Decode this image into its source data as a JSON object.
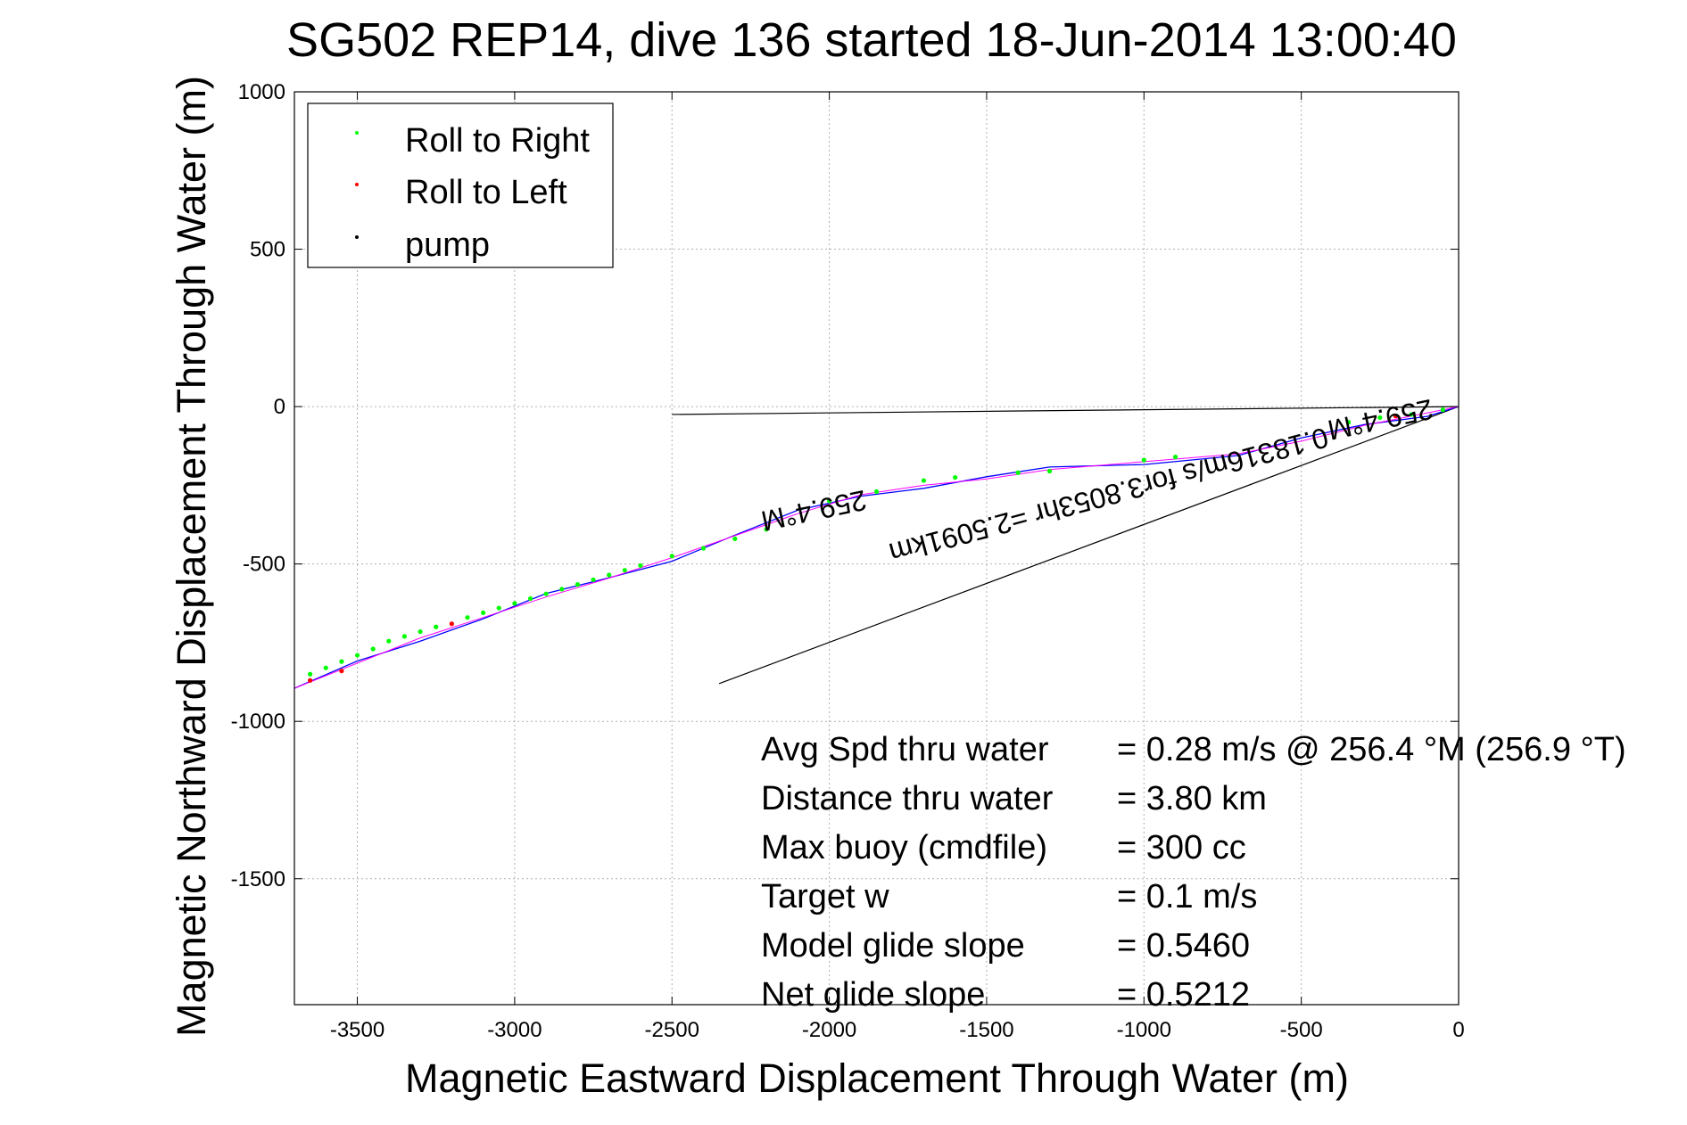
{
  "chart_data": {
    "type": "line",
    "title": "SG502 REP14, dive 136 started 18-Jun-2014 13:00:40",
    "xlabel": "Magnetic Eastward Displacement Through Water (m)",
    "ylabel": "Magnetic Northward Displacement Through Water (m)",
    "xlim": [
      -3700,
      0
    ],
    "ylim": [
      -1900,
      1000
    ],
    "xticks": [
      -3500,
      -3000,
      -2500,
      -2000,
      -1500,
      -1000,
      -500,
      0
    ],
    "xtick_labels": [
      "-3500",
      "-3000",
      "-2500",
      "-2000",
      "-1500",
      "-1000",
      "-500",
      "0"
    ],
    "yticks": [
      1000,
      500,
      0,
      -500,
      -1000,
      -1500
    ],
    "ytick_labels": [
      "1000",
      "500",
      "0",
      "-500",
      "-1000",
      "-1500"
    ],
    "grid": true,
    "legend_position": "top-left",
    "legend": [
      {
        "label": "Roll to Right",
        "color": "#00ff00"
      },
      {
        "label": "Roll to Left",
        "color": "#ff0000"
      },
      {
        "label": "pump",
        "color": "#000000"
      }
    ],
    "colors": {
      "track": "#0000ff",
      "smoothed": "#ff00ff",
      "axis": "#000000",
      "grid": "#b0b0b0"
    },
    "series": [
      {
        "x": [
          0,
          -100,
          -300,
          -500,
          -700,
          -1000,
          -1300,
          -1500,
          -1700,
          -1900,
          -2100,
          -2300,
          -2500,
          -2700,
          -2900,
          -3100,
          -3300,
          -3500,
          -3700
        ],
        "y": [
          0,
          -20,
          -60,
          -110,
          -150,
          -175,
          -200,
          -230,
          -250,
          -280,
          -340,
          -410,
          -480,
          -545,
          -605,
          -670,
          -735,
          -815,
          -895
        ]
      }
    ],
    "roll_right_points": {
      "x": [
        -50,
        -150,
        -250,
        -350,
        -900,
        -1000,
        -1300,
        -1400,
        -1600,
        -1700,
        -1850,
        -2000,
        -2200,
        -2300,
        -2400,
        -2500,
        -2600,
        -2650,
        -2700,
        -2750,
        -2800,
        -2850,
        -2900,
        -2950,
        -3000,
        -3050,
        -3100,
        -3150,
        -3250,
        -3300,
        -3350,
        -3400,
        -3450,
        -3500,
        -3550,
        -3600,
        -3650
      ],
      "y": [
        -10,
        -25,
        -35,
        -50,
        -160,
        -170,
        -205,
        -210,
        -225,
        -235,
        -270,
        -300,
        -390,
        -420,
        -450,
        -475,
        -505,
        -520,
        -535,
        -550,
        -565,
        -580,
        -595,
        -610,
        -625,
        -640,
        -655,
        -670,
        -700,
        -715,
        -730,
        -745,
        -770,
        -790,
        -810,
        -830,
        -850
      ]
    },
    "roll_left_points": {
      "x": [
        -200,
        -3200,
        -3550,
        -3650
      ],
      "y": [
        -30,
        -690,
        -840,
        -870
      ]
    },
    "annotations": {
      "heading_line_label": "259.4°M",
      "current_label": "0.1831",
      "current_label_rest": "6m/s for3.8053hr =2.5091km",
      "current_heading_label": "259.4°M"
    },
    "reference_lines": [
      {
        "x": [
          0,
          -2500
        ],
        "y": [
          0,
          -25
        ]
      },
      {
        "x": [
          0,
          -2350
        ],
        "y": [
          0,
          -880
        ]
      }
    ],
    "stats": [
      {
        "label": "Avg Spd thru water",
        "value": "=  0.28 m/s @ 256.4 °M (256.9 °T)"
      },
      {
        "label": "Distance thru water",
        "value": "=  3.80 km"
      },
      {
        "label": "Max buoy (cmdfile)",
        "value": "= 300 cc"
      },
      {
        "label": "Target w",
        "value": "= 0.1 m/s"
      },
      {
        "label": "Model glide slope",
        "value": "= 0.5460"
      },
      {
        "label": "Net glide slope",
        "value": "= 0.5212"
      }
    ]
  }
}
